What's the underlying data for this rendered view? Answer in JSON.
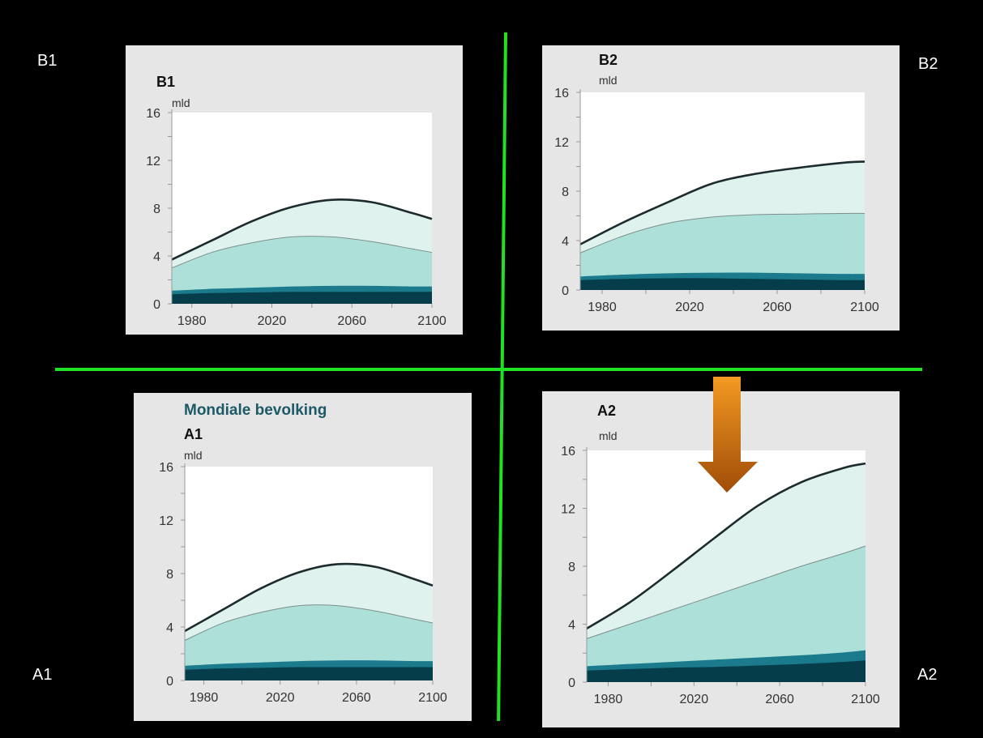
{
  "quadrant_labels": {
    "b1": "B1",
    "b2": "B2",
    "a1": "A1",
    "a2": "A2"
  },
  "colors": {
    "divider": "#22e022",
    "arrow_top": "#f39a22",
    "arrow_bottom": "#a04c08",
    "band_bottom": "#053e4a",
    "band_second": "#1b7a8c",
    "band_third": "#ace0d8",
    "band_top": "#dff2ee",
    "total_line": "#1e2b2e"
  },
  "chart_data": [
    {
      "id": "B1",
      "type": "area",
      "title": "B1",
      "unit": "mld",
      "header": "",
      "x_ticks": [
        "1980",
        "2020",
        "2060",
        "2100"
      ],
      "y_ticks": [
        "0",
        "4",
        "8",
        "12",
        "16"
      ],
      "xlim": [
        1970,
        2100
      ],
      "ylim": [
        0,
        16
      ],
      "x": [
        1970,
        1990,
        2010,
        2030,
        2050,
        2070,
        2090,
        2100
      ],
      "series": [
        {
          "values": [
            0.8,
            0.9,
            0.95,
            1.0,
            1.0,
            1.0,
            1.0,
            1.0
          ]
        },
        {
          "values": [
            1.1,
            1.25,
            1.35,
            1.45,
            1.5,
            1.5,
            1.45,
            1.45
          ]
        },
        {
          "values": [
            3.0,
            4.3,
            5.1,
            5.6,
            5.6,
            5.2,
            4.6,
            4.3
          ]
        },
        {
          "values": [
            3.7,
            5.3,
            6.9,
            8.1,
            8.7,
            8.5,
            7.6,
            7.1
          ]
        }
      ]
    },
    {
      "id": "B2",
      "type": "area",
      "title": "B2",
      "unit": "mld",
      "header": "",
      "x_ticks": [
        "1980",
        "2020",
        "2060",
        "2100"
      ],
      "y_ticks": [
        "0",
        "4",
        "8",
        "12",
        "16"
      ],
      "xlim": [
        1970,
        2100
      ],
      "ylim": [
        0,
        16
      ],
      "x": [
        1970,
        1990,
        2010,
        2030,
        2050,
        2070,
        2090,
        2100
      ],
      "series": [
        {
          "values": [
            0.8,
            0.9,
            0.95,
            0.95,
            0.9,
            0.85,
            0.8,
            0.8
          ]
        },
        {
          "values": [
            1.1,
            1.25,
            1.35,
            1.4,
            1.4,
            1.35,
            1.3,
            1.3
          ]
        },
        {
          "values": [
            3.0,
            4.4,
            5.4,
            5.9,
            6.1,
            6.15,
            6.2,
            6.2
          ]
        },
        {
          "values": [
            3.7,
            5.5,
            7.1,
            8.6,
            9.4,
            9.9,
            10.3,
            10.4
          ]
        }
      ]
    },
    {
      "id": "A1",
      "type": "area",
      "title": "A1",
      "unit": "mld",
      "header": "Mondiale bevolking",
      "x_ticks": [
        "1980",
        "2020",
        "2060",
        "2100"
      ],
      "y_ticks": [
        "0",
        "4",
        "8",
        "12",
        "16"
      ],
      "xlim": [
        1970,
        2100
      ],
      "ylim": [
        0,
        16
      ],
      "x": [
        1970,
        1990,
        2010,
        2030,
        2050,
        2070,
        2090,
        2100
      ],
      "series": [
        {
          "values": [
            0.8,
            0.9,
            0.95,
            1.0,
            1.0,
            1.0,
            1.0,
            1.0
          ]
        },
        {
          "values": [
            1.1,
            1.25,
            1.35,
            1.45,
            1.5,
            1.5,
            1.45,
            1.45
          ]
        },
        {
          "values": [
            3.0,
            4.3,
            5.1,
            5.6,
            5.6,
            5.2,
            4.6,
            4.3
          ]
        },
        {
          "values": [
            3.7,
            5.3,
            6.9,
            8.1,
            8.7,
            8.5,
            7.6,
            7.1
          ]
        }
      ]
    },
    {
      "id": "A2",
      "type": "area",
      "title": "A2",
      "unit": "mld",
      "header": "",
      "x_ticks": [
        "1980",
        "2020",
        "2060",
        "2100"
      ],
      "y_ticks": [
        "0",
        "4",
        "8",
        "12",
        "16"
      ],
      "xlim": [
        1970,
        2100
      ],
      "ylim": [
        0,
        16
      ],
      "x": [
        1970,
        1990,
        2010,
        2030,
        2050,
        2070,
        2090,
        2100
      ],
      "series": [
        {
          "values": [
            0.8,
            0.9,
            1.0,
            1.05,
            1.15,
            1.25,
            1.4,
            1.5
          ]
        },
        {
          "values": [
            1.1,
            1.25,
            1.4,
            1.55,
            1.7,
            1.85,
            2.05,
            2.2
          ]
        },
        {
          "values": [
            3.0,
            4.0,
            5.0,
            6.0,
            7.0,
            8.0,
            8.9,
            9.4
          ]
        },
        {
          "values": [
            3.7,
            5.5,
            7.7,
            10.0,
            12.2,
            13.8,
            14.8,
            15.1
          ]
        }
      ]
    }
  ]
}
